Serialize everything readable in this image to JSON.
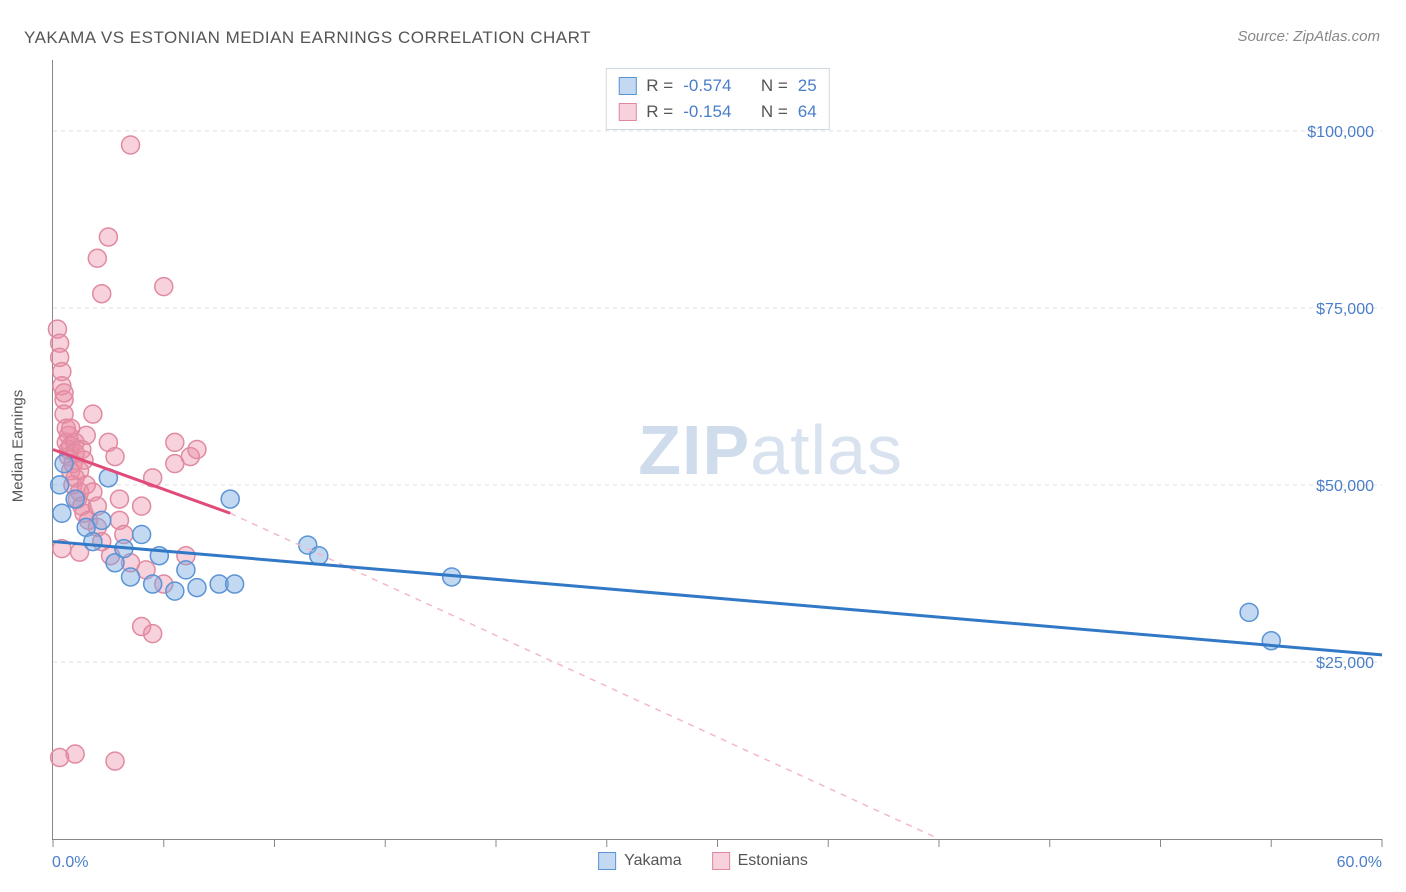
{
  "title": "YAKAMA VS ESTONIAN MEDIAN EARNINGS CORRELATION CHART",
  "source": "Source: ZipAtlas.com",
  "y_axis_label": "Median Earnings",
  "watermark_strong": "ZIP",
  "watermark_light": "atlas",
  "chart": {
    "type": "scatter",
    "background_color": "#ffffff",
    "grid_color": "#dddddd",
    "axis_color": "#888888",
    "xlim": [
      0,
      60
    ],
    "ylim": [
      0,
      110000
    ],
    "x_min_label": "0.0%",
    "x_max_label": "60.0%",
    "x_ticks": [
      0,
      5,
      10,
      15,
      20,
      25,
      30,
      35,
      40,
      45,
      50,
      55,
      60
    ],
    "y_ticks": [
      {
        "v": 25000,
        "label": "$25,000"
      },
      {
        "v": 50000,
        "label": "$50,000"
      },
      {
        "v": 75000,
        "label": "$75,000"
      },
      {
        "v": 100000,
        "label": "$100,000"
      }
    ],
    "series": [
      {
        "id": "yakama",
        "label": "Yakama",
        "r_label": "R =",
        "r_value": "-0.574",
        "n_label": "N =",
        "n_value": "25",
        "marker_fill": "rgba(121,168,225,0.45)",
        "marker_stroke": "#5a94d6",
        "marker_radius": 9,
        "trend_color": "#3178c6",
        "trend_width": 3,
        "trend_dash": "none",
        "trend": {
          "x1": 0,
          "y1": 42000,
          "x2": 60,
          "y2": 26000
        },
        "points": [
          [
            0.3,
            50000
          ],
          [
            0.4,
            46000
          ],
          [
            0.5,
            53000
          ],
          [
            1.0,
            48000
          ],
          [
            1.5,
            44000
          ],
          [
            1.8,
            42000
          ],
          [
            2.2,
            45000
          ],
          [
            2.5,
            51000
          ],
          [
            2.8,
            39000
          ],
          [
            3.2,
            41000
          ],
          [
            3.5,
            37000
          ],
          [
            4.0,
            43000
          ],
          [
            4.5,
            36000
          ],
          [
            4.8,
            40000
          ],
          [
            5.5,
            35000
          ],
          [
            6.0,
            38000
          ],
          [
            6.5,
            35500
          ],
          [
            7.5,
            36000
          ],
          [
            8.0,
            48000
          ],
          [
            8.2,
            36000
          ],
          [
            11.5,
            41500
          ],
          [
            12.0,
            40000
          ],
          [
            18.0,
            37000
          ],
          [
            54.0,
            32000
          ],
          [
            55.0,
            28000
          ]
        ]
      },
      {
        "id": "estonians",
        "label": "Estonians",
        "r_label": "R =",
        "r_value": "-0.154",
        "n_label": "N =",
        "n_value": "64",
        "marker_fill": "rgba(236,140,165,0.40)",
        "marker_stroke": "#e08aa0",
        "marker_radius": 9,
        "trend_color": "#e14b7a",
        "trend_width": 3,
        "trend_dash": "none",
        "trend": {
          "x1": 0,
          "y1": 55000,
          "x2": 8,
          "y2": 46000
        },
        "trend_extend_dash": {
          "color": "#f3b8c8",
          "width": 1.5,
          "dash": "6,6",
          "x1": 8,
          "y1": 46000,
          "x2": 40,
          "y2": 0
        },
        "points": [
          [
            0.2,
            72000
          ],
          [
            0.3,
            70000
          ],
          [
            0.3,
            68000
          ],
          [
            0.4,
            66000
          ],
          [
            0.4,
            64000
          ],
          [
            0.5,
            62000
          ],
          [
            0.5,
            60000
          ],
          [
            0.5,
            63000
          ],
          [
            0.6,
            58000
          ],
          [
            0.6,
            56000
          ],
          [
            0.7,
            54000
          ],
          [
            0.7,
            57000
          ],
          [
            0.7,
            55000
          ],
          [
            0.8,
            52000
          ],
          [
            0.8,
            55500
          ],
          [
            0.8,
            58000
          ],
          [
            0.9,
            50000
          ],
          [
            0.9,
            53000
          ],
          [
            1.0,
            51000
          ],
          [
            1.0,
            56000
          ],
          [
            1.0,
            54500
          ],
          [
            1.1,
            48000
          ],
          [
            1.2,
            49000
          ],
          [
            1.2,
            52000
          ],
          [
            1.3,
            47000
          ],
          [
            1.3,
            55000
          ],
          [
            1.4,
            46000
          ],
          [
            1.4,
            53500
          ],
          [
            1.5,
            57000
          ],
          [
            1.5,
            50000
          ],
          [
            1.6,
            45000
          ],
          [
            1.8,
            49000
          ],
          [
            1.8,
            60000
          ],
          [
            2.0,
            82000
          ],
          [
            2.0,
            44000
          ],
          [
            2.0,
            47000
          ],
          [
            2.2,
            77000
          ],
          [
            2.2,
            42000
          ],
          [
            2.5,
            85000
          ],
          [
            2.5,
            56000
          ],
          [
            2.6,
            40000
          ],
          [
            2.8,
            54000
          ],
          [
            3.0,
            45000
          ],
          [
            3.0,
            48000
          ],
          [
            3.2,
            43000
          ],
          [
            3.5,
            98000
          ],
          [
            3.5,
            39000
          ],
          [
            4.0,
            47000
          ],
          [
            4.0,
            30000
          ],
          [
            4.2,
            38000
          ],
          [
            4.5,
            51000
          ],
          [
            4.5,
            29000
          ],
          [
            5.0,
            78000
          ],
          [
            5.0,
            36000
          ],
          [
            5.5,
            53000
          ],
          [
            5.5,
            56000
          ],
          [
            6.0,
            40000
          ],
          [
            6.2,
            54000
          ],
          [
            6.5,
            55000
          ],
          [
            0.4,
            41000
          ],
          [
            1.0,
            12000
          ],
          [
            2.8,
            11000
          ],
          [
            0.3,
            11500
          ],
          [
            1.2,
            40500
          ]
        ]
      }
    ]
  }
}
